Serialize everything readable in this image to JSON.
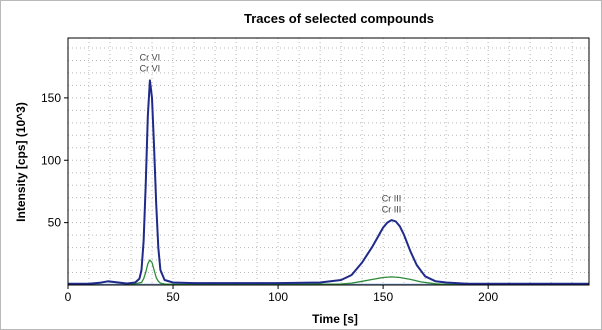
{
  "chart_data": {
    "type": "line",
    "title": "Traces of selected compounds",
    "xlabel": "Time [s]",
    "ylabel": "Intensity [cps] (10^3)",
    "xlim": [
      0,
      248
    ],
    "ylim": [
      0,
      198
    ],
    "xticks": [
      0,
      50,
      100,
      150,
      200
    ],
    "yticks": [
      50,
      100,
      150
    ],
    "grid": true,
    "legend": "none",
    "colors": {
      "blue": "#1f2a8a",
      "green": "#2e8b3a",
      "baseline": "#6c8fc4"
    },
    "series": [
      {
        "color": "#1f2a8a",
        "x": [
          0,
          10,
          15,
          19,
          23,
          28,
          32,
          34,
          35,
          36,
          37,
          38,
          39,
          40,
          41,
          42,
          43,
          44,
          46,
          50,
          60,
          80,
          100,
          120,
          130,
          135,
          140,
          145,
          148,
          150,
          152,
          154,
          156,
          158,
          160,
          163,
          166,
          170,
          175,
          180,
          190,
          210,
          230,
          248
        ],
        "y": [
          1,
          1,
          1.8,
          3,
          2.2,
          1.2,
          2,
          5,
          12,
          35,
          80,
          135,
          164,
          150,
          110,
          65,
          30,
          12,
          4,
          2,
          1.5,
          1.5,
          1.5,
          2,
          4,
          8,
          18,
          31,
          40,
          46,
          50,
          52,
          51,
          47,
          40,
          27,
          16,
          7,
          3,
          2,
          1,
          1,
          1,
          1
        ]
      },
      {
        "color": "#2e8b3a",
        "x": [
          0,
          10,
          15,
          19,
          23,
          28,
          32,
          35,
          36,
          37,
          38,
          39,
          40,
          41,
          42,
          43,
          44,
          46,
          50,
          60,
          100,
          130,
          135,
          140,
          145,
          150,
          154,
          158,
          163,
          168,
          175,
          180,
          190,
          210,
          248
        ],
        "y": [
          0.5,
          0.5,
          1.5,
          2.8,
          2,
          0.8,
          1,
          2,
          5,
          10,
          17,
          20,
          18,
          12,
          6,
          3,
          1.5,
          0.8,
          0.5,
          0.5,
          0.5,
          0.8,
          1.5,
          3,
          4.5,
          6,
          6.5,
          6,
          4.5,
          2.5,
          1,
          0.5,
          0.5,
          0.5,
          0.5
        ]
      }
    ],
    "annotations": [
      {
        "text": "Cr VI",
        "x": 39,
        "y": 180
      },
      {
        "text": "Cr VI",
        "x": 39,
        "y": 171
      },
      {
        "text": "Cr III",
        "x": 154,
        "y": 67
      },
      {
        "text": "Cr III",
        "x": 154,
        "y": 58
      }
    ]
  }
}
